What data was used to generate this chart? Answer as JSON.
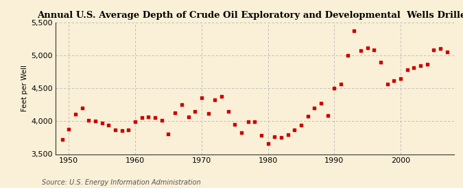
{
  "title": "Annual U.S. Average Depth of Crude Oil Exploratory and Developmental  Wells Drilled",
  "ylabel": "Feet per Well",
  "source": "Source: U.S. Energy Information Administration",
  "background_color": "#faf0d7",
  "marker_color": "#cc0000",
  "xlim": [
    1948,
    2008
  ],
  "ylim": [
    3500,
    5500
  ],
  "yticks": [
    3500,
    4000,
    4500,
    5000,
    5500
  ],
  "xticks": [
    1950,
    1960,
    1970,
    1980,
    1990,
    2000
  ],
  "years": [
    1949,
    1950,
    1951,
    1952,
    1953,
    1954,
    1955,
    1956,
    1957,
    1958,
    1959,
    1960,
    1961,
    1962,
    1963,
    1964,
    1965,
    1966,
    1967,
    1968,
    1969,
    1970,
    1971,
    1972,
    1973,
    1974,
    1975,
    1976,
    1977,
    1978,
    1979,
    1980,
    1981,
    1982,
    1983,
    1984,
    1985,
    1986,
    1987,
    1988,
    1989,
    1990,
    1991,
    1992,
    1993,
    1994,
    1995,
    1996,
    1997,
    1998,
    1999,
    2000,
    2001,
    2002,
    2003,
    2004,
    2005,
    2006,
    2007
  ],
  "values": [
    3720,
    3880,
    4110,
    4200,
    4010,
    4000,
    3970,
    3940,
    3870,
    3860,
    3870,
    3990,
    4060,
    4070,
    4060,
    4010,
    3810,
    4130,
    4250,
    4070,
    4150,
    4360,
    4120,
    4330,
    4380,
    4150,
    3950,
    3830,
    3990,
    3990,
    3790,
    3660,
    3770,
    3750,
    3800,
    3870,
    3940,
    4080,
    4200,
    4270,
    4090,
    4500,
    4560,
    5000,
    5380,
    5070,
    5120,
    5080,
    4900,
    4570,
    4620,
    4650,
    4780,
    4810,
    4850,
    4870,
    5080,
    5110,
    5050
  ]
}
